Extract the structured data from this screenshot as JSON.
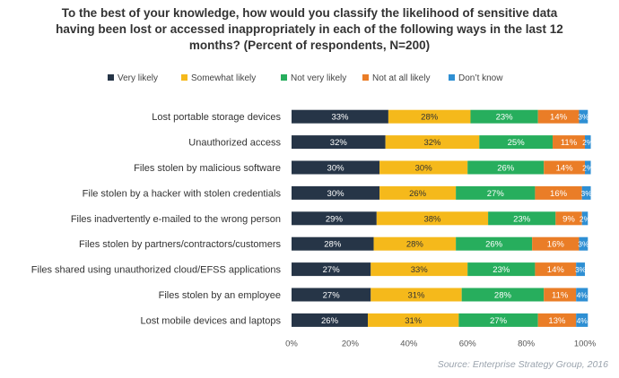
{
  "chart_data": {
    "type": "bar",
    "orientation": "horizontal",
    "stacked": true,
    "title": "To the best of your knowledge, how would you classify the likelihood of sensitive data having been lost or accessed inappropriately in each of the following ways in the last 12 months? (Percent of respondents, N=200)",
    "title_lines": [
      "To the best of your knowledge, how would you classify the likelihood of sensitive data",
      "having been lost or accessed inappropriately in each of the following ways in the last 12",
      "months? (Percent of respondents, N=200)"
    ],
    "categories": [
      "Lost portable storage devices",
      "Unauthorized access",
      "Files stolen by malicious software",
      "File stolen by a hacker with stolen credentials",
      "Files inadvertently e-mailed to the wrong person",
      "Files stolen by partners/contractors/customers",
      "Files shared using unauthorized cloud/EFSS applications",
      "Files stolen by an employee",
      "Lost mobile devices and laptops"
    ],
    "series": [
      {
        "name": "Very likely",
        "color": "#263547",
        "values": [
          33,
          32,
          30,
          30,
          29,
          28,
          27,
          27,
          26
        ]
      },
      {
        "name": "Somewhat likely",
        "color": "#f5b91b",
        "values": [
          28,
          32,
          30,
          26,
          38,
          28,
          33,
          31,
          31
        ]
      },
      {
        "name": "Not very likely",
        "color": "#27ae5d",
        "values": [
          23,
          25,
          26,
          27,
          23,
          26,
          23,
          28,
          27
        ]
      },
      {
        "name": "Not at all likely",
        "color": "#ea7d27",
        "values": [
          14,
          11,
          14,
          16,
          9,
          16,
          14,
          11,
          13
        ]
      },
      {
        "name": "Don’t know",
        "color": "#2e8fd3",
        "values": [
          3,
          2,
          2,
          3,
          2,
          3,
          3,
          4,
          4
        ]
      }
    ],
    "label_suffix": "%",
    "xlim": [
      0,
      100
    ],
    "xticks": [
      "0%",
      "20%",
      "40%",
      "60%",
      "80%",
      "100%"
    ],
    "legend_position": "top",
    "grid": false
  },
  "source": "Source: Enterprise Strategy Group, 2016"
}
